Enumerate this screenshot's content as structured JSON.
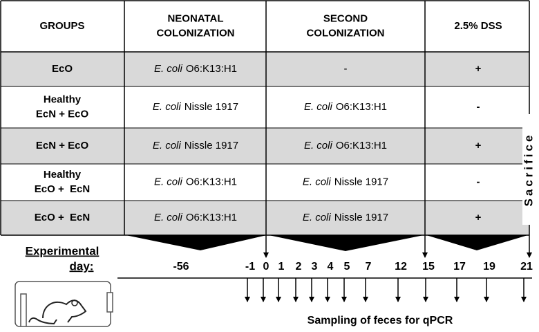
{
  "table": {
    "headers": [
      [
        "GROUPS"
      ],
      [
        "NEONATAL",
        "COLONIZATION"
      ],
      [
        "SECOND",
        "COLONIZATION"
      ],
      [
        "2.5% DSS"
      ]
    ],
    "rows": [
      {
        "group": [
          "EcO"
        ],
        "neonatal": {
          "species": "E. coli",
          "strain": "O6:K13:H1"
        },
        "second": "-",
        "dss": "+"
      },
      {
        "group": [
          "Healthy",
          "EcN + EcO"
        ],
        "neonatal": {
          "species": "E. coli",
          "strain": "Nissle 1917"
        },
        "second": {
          "species": "E. coli",
          "strain": "O6:K13:H1"
        },
        "dss": "-"
      },
      {
        "group": [
          "EcN + EcO"
        ],
        "neonatal": {
          "species": "E. coli",
          "strain": "Nissle 1917"
        },
        "second": {
          "species": "E. coli",
          "strain": "O6:K13:H1"
        },
        "dss": "+"
      },
      {
        "group": [
          "Healthy",
          "EcO +  EcN"
        ],
        "neonatal": {
          "species": "E. coli",
          "strain": "O6:K13:H1"
        },
        "second": {
          "species": "E. coli",
          "strain": "Nissle 1917"
        },
        "dss": "-"
      },
      {
        "group": [
          "EcO +  EcN"
        ],
        "neonatal": {
          "species": "E. coli",
          "strain": "O6:K13:H1"
        },
        "second": {
          "species": "E. coli",
          "strain": "Nissle 1917"
        },
        "dss": "+"
      }
    ]
  },
  "timeline": {
    "label": [
      "Experimental",
      "day:"
    ],
    "days": [
      -56,
      -1,
      0,
      1,
      2,
      3,
      4,
      5,
      7,
      12,
      15,
      17,
      19,
      21
    ],
    "sacrifice": "Sacrifice",
    "sampling": "Sampling of feces for qPCR"
  }
}
